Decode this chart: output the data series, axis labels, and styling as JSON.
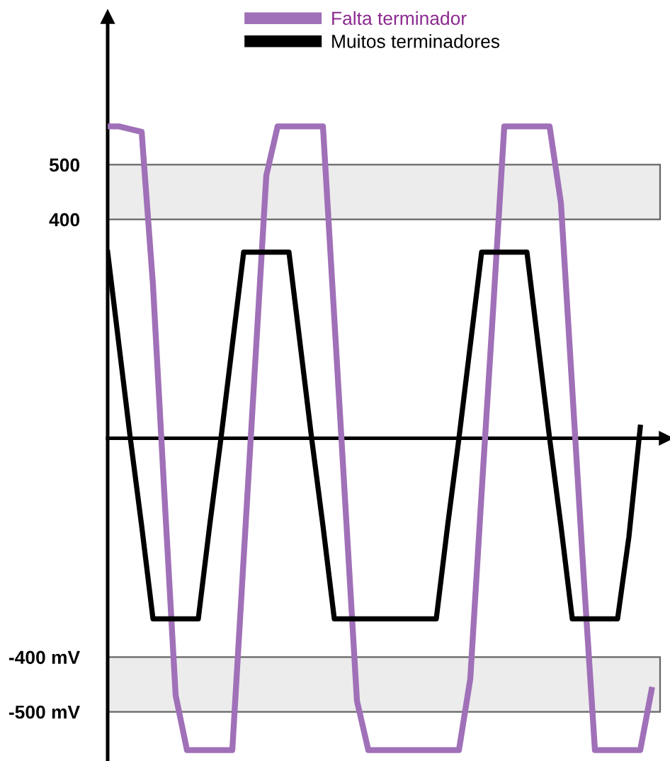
{
  "chart_data": {
    "type": "line",
    "categories": [
      null,
      null,
      null,
      null,
      null,
      null,
      null,
      null,
      null,
      null,
      null,
      null,
      null,
      null,
      null,
      null,
      null,
      null,
      null,
      null,
      null,
      null,
      null,
      null,
      null,
      null,
      null,
      null,
      null,
      null,
      null,
      null,
      null,
      null,
      null,
      null,
      null,
      null,
      null,
      null,
      null,
      null,
      null,
      null,
      null,
      null,
      null,
      null,
      null
    ],
    "series": [
      {
        "name": "Falta terminador",
        "color": "#a070b8",
        "values": [
          570,
          570,
          565,
          560,
          280,
          -100,
          -470,
          -570,
          -570,
          -570,
          -570,
          -570,
          -220,
          130,
          480,
          570,
          570,
          570,
          570,
          570,
          220,
          -130,
          -480,
          -570,
          -570,
          -570,
          -570,
          -570,
          -570,
          -570,
          -570,
          -570,
          -440,
          -100,
          230,
          570,
          570,
          570,
          570,
          570,
          430,
          90,
          -250,
          -570,
          -570,
          -570,
          -570,
          -570,
          -460
        ]
      },
      {
        "name": "Muitos terminadores",
        "color": "#000000",
        "values": [
          340,
          170,
          0,
          -160,
          -330,
          -330,
          -330,
          -330,
          -330,
          -160,
          0,
          170,
          340,
          340,
          340,
          340,
          340,
          170,
          0,
          -160,
          -330,
          -330,
          -330,
          -330,
          -330,
          -330,
          -330,
          -330,
          -330,
          -330,
          -160,
          0,
          170,
          340,
          340,
          340,
          340,
          340,
          170,
          0,
          -160,
          -330,
          -330,
          -330,
          -330,
          -330,
          -180,
          20,
          null
        ]
      }
    ],
    "ylim": [
      -590,
      770
    ],
    "yticks": [
      500,
      400,
      {
        "value": -400,
        "label": "-400 mV"
      },
      {
        "value": -500,
        "label": "-500 mV"
      }
    ],
    "bands": [
      {
        "axis": "y",
        "from": 400,
        "to": 500,
        "color": "#ececec"
      },
      {
        "axis": "y",
        "from": -500,
        "to": -400,
        "color": "#ececec"
      }
    ],
    "tick_labels": "y",
    "legend": "top",
    "grid": false,
    "marker": "none",
    "line_style": "solid"
  }
}
